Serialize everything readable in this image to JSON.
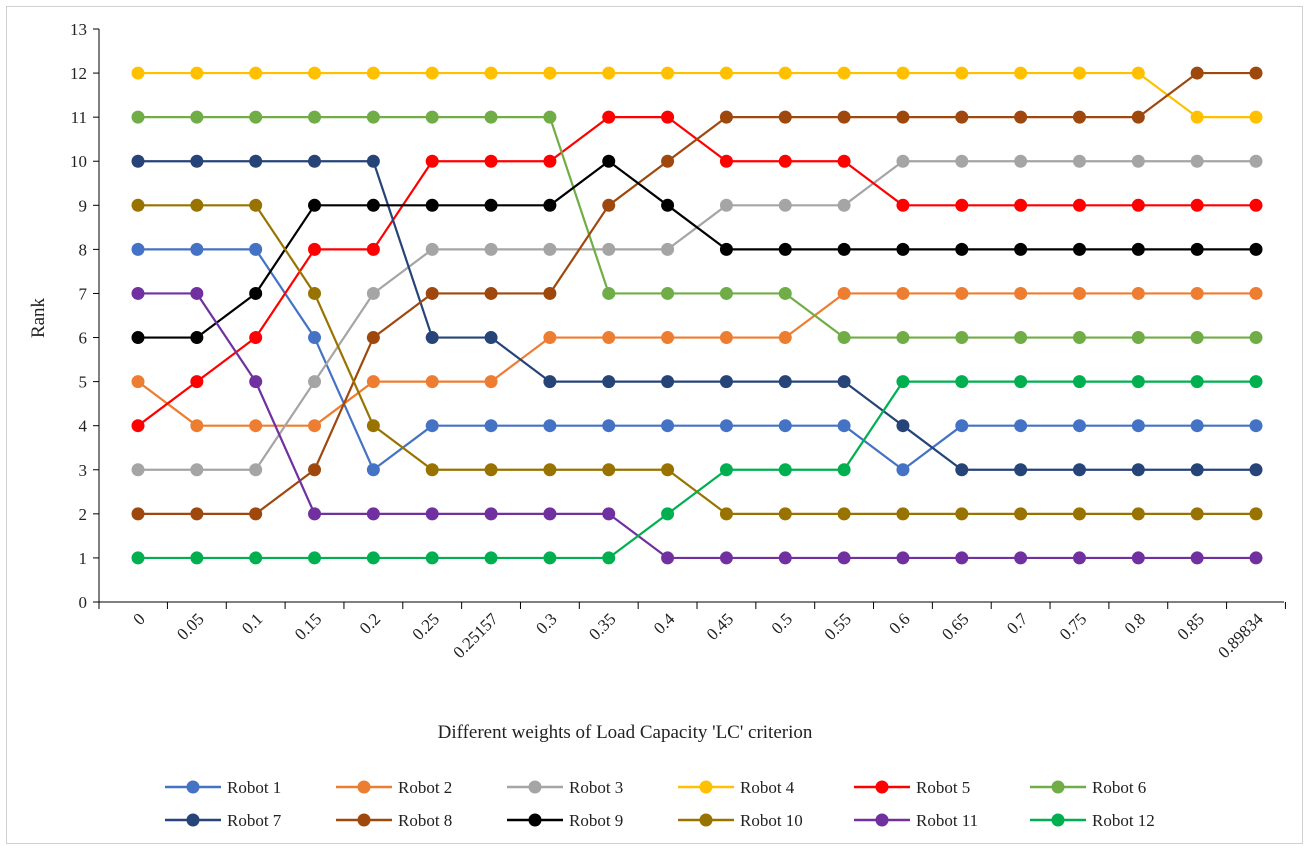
{
  "chart_data": {
    "type": "line",
    "title": "",
    "xlabel": "Different weights of Load Capacity 'LC' criterion",
    "ylabel": "Rank",
    "ylim": [
      0,
      13
    ],
    "yticks": [
      "0",
      "1",
      "2",
      "3",
      "4",
      "5",
      "6",
      "7",
      "8",
      "9",
      "10",
      "11",
      "12",
      "13"
    ],
    "categories": [
      "0",
      "0.05",
      "0.1",
      "0.15",
      "0.2",
      "0.25",
      "0.25157",
      "0.3",
      "0.35",
      "0.4",
      "0.45",
      "0.5",
      "0.55",
      "0.6",
      "0.65",
      "0.7",
      "0.75",
      "0.8",
      "0.85",
      "0.89834"
    ],
    "legend_position": "bottom",
    "series": [
      {
        "name": "Robot 1",
        "color": "#4472C4",
        "values": [
          8,
          8,
          8,
          6,
          3,
          4,
          4,
          4,
          4,
          4,
          4,
          4,
          4,
          3,
          4,
          4,
          4,
          4,
          4,
          4
        ]
      },
      {
        "name": "Robot 2",
        "color": "#ED7D31",
        "values": [
          5,
          4,
          4,
          4,
          5,
          5,
          5,
          6,
          6,
          6,
          6,
          6,
          7,
          7,
          7,
          7,
          7,
          7,
          7,
          7
        ]
      },
      {
        "name": "Robot 3",
        "color": "#A5A5A5",
        "values": [
          3,
          3,
          3,
          5,
          7,
          8,
          8,
          8,
          8,
          8,
          9,
          9,
          9,
          10,
          10,
          10,
          10,
          10,
          10,
          10
        ]
      },
      {
        "name": "Robot 4",
        "color": "#FFC000",
        "values": [
          12,
          12,
          12,
          12,
          12,
          12,
          12,
          12,
          12,
          12,
          12,
          12,
          12,
          12,
          12,
          12,
          12,
          12,
          11,
          11
        ]
      },
      {
        "name": "Robot 5",
        "color": "#FF0000",
        "values": [
          4,
          5,
          6,
          8,
          8,
          10,
          10,
          10,
          11,
          11,
          10,
          10,
          10,
          9,
          9,
          9,
          9,
          9,
          9,
          9
        ]
      },
      {
        "name": "Robot 6",
        "color": "#70AD47",
        "values": [
          11,
          11,
          11,
          11,
          11,
          11,
          11,
          11,
          7,
          7,
          7,
          7,
          6,
          6,
          6,
          6,
          6,
          6,
          6,
          6
        ]
      },
      {
        "name": "Robot 7",
        "color": "#264478",
        "values": [
          10,
          10,
          10,
          10,
          10,
          6,
          6,
          5,
          5,
          5,
          5,
          5,
          5,
          4,
          3,
          3,
          3,
          3,
          3,
          3
        ]
      },
      {
        "name": "Robot 8",
        "color": "#9E480E",
        "values": [
          2,
          2,
          2,
          3,
          6,
          7,
          7,
          7,
          9,
          10,
          11,
          11,
          11,
          11,
          11,
          11,
          11,
          11,
          12,
          12
        ]
      },
      {
        "name": "Robot 9",
        "color": "#000000",
        "values": [
          6,
          6,
          7,
          9,
          9,
          9,
          9,
          9,
          10,
          9,
          8,
          8,
          8,
          8,
          8,
          8,
          8,
          8,
          8,
          8
        ]
      },
      {
        "name": "Robot 10",
        "color": "#997300",
        "values": [
          9,
          9,
          9,
          7,
          4,
          3,
          3,
          3,
          3,
          3,
          2,
          2,
          2,
          2,
          2,
          2,
          2,
          2,
          2,
          2
        ]
      },
      {
        "name": "Robot 11",
        "color": "#7030A0",
        "values": [
          7,
          7,
          5,
          2,
          2,
          2,
          2,
          2,
          2,
          1,
          1,
          1,
          1,
          1,
          1,
          1,
          1,
          1,
          1,
          1
        ]
      },
      {
        "name": "Robot 12",
        "color": "#00B050",
        "values": [
          1,
          1,
          1,
          1,
          1,
          1,
          1,
          1,
          1,
          2,
          3,
          3,
          3,
          5,
          5,
          5,
          5,
          5,
          5,
          5
        ]
      }
    ]
  }
}
